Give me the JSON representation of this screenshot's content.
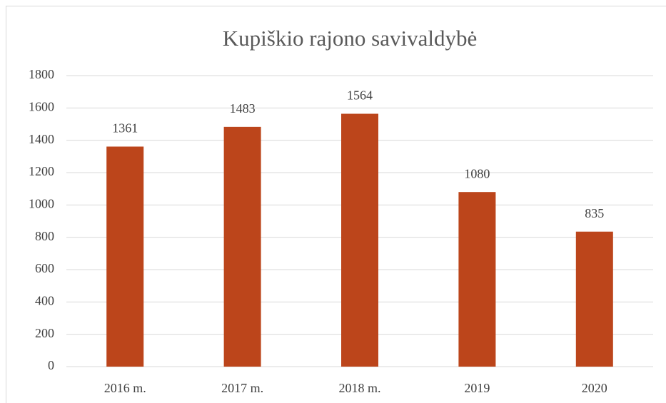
{
  "chart_data": {
    "type": "bar",
    "title": "Kupiškio rajono savivaldybė",
    "categories": [
      "2016 m.",
      "2017 m.",
      "2018 m.",
      "2019",
      "2020"
    ],
    "values": [
      1361,
      1483,
      1564,
      1080,
      835
    ],
    "color": "#bc451b",
    "ylim": [
      0,
      1800
    ],
    "yticks": [
      0,
      200,
      400,
      600,
      800,
      1000,
      1200,
      1400,
      1600,
      1800
    ],
    "grid": true
  }
}
